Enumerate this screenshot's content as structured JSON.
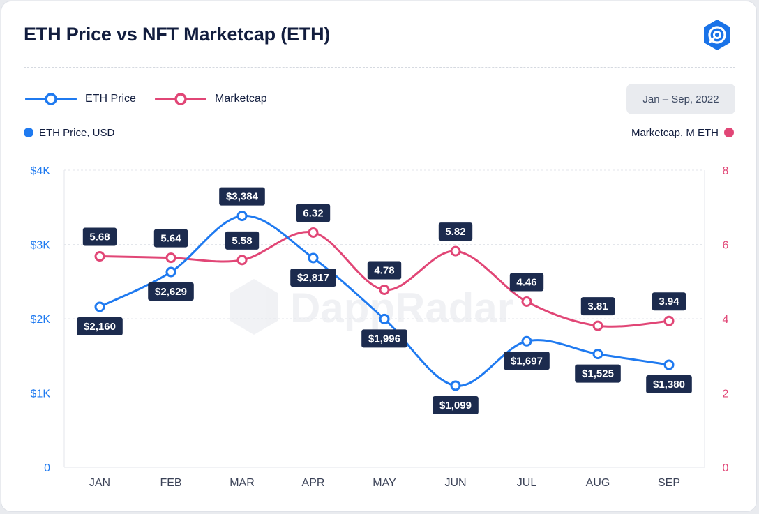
{
  "title": "ETH Price vs NFT Marketcap (ETH)",
  "logo": {
    "icon": "dappradar-logo-icon",
    "color": "#1a73e8"
  },
  "watermark": "DappRadar",
  "date_range": "Jan – Sep, 2022",
  "legend": [
    {
      "label": "ETH Price",
      "color": "#1f7af0"
    },
    {
      "label": "Marketcap",
      "color": "#e14676"
    }
  ],
  "left_axis_label": "ETH Price, USD",
  "right_axis_label": "Marketcap, M ETH",
  "chart_data": {
    "type": "line",
    "title": "ETH Price vs NFT Marketcap (ETH)",
    "categories": [
      "JAN",
      "FEB",
      "MAR",
      "APR",
      "MAY",
      "JUN",
      "JUL",
      "AUG",
      "SEP"
    ],
    "y_left": {
      "label": "ETH Price, USD",
      "ticks": [
        "0",
        "$1K",
        "$2K",
        "$3K",
        "$4K"
      ],
      "ylim": [
        0,
        4000
      ],
      "color": "#1f7af0"
    },
    "y_right": {
      "label": "Marketcap, M ETH",
      "ticks": [
        "0",
        "2",
        "4",
        "6",
        "8"
      ],
      "ylim": [
        0,
        8
      ],
      "color": "#e14676"
    },
    "grid": true,
    "series": [
      {
        "name": "ETH Price",
        "axis": "left",
        "color": "#1f7af0",
        "values": [
          2160,
          2629,
          3384,
          2817,
          1996,
          1099,
          1697,
          1525,
          1380
        ],
        "labels": [
          "$2,160",
          "$2,629",
          "$3,384",
          "$2,817",
          "$1,996",
          "$1,099",
          "$1,697",
          "$1,525",
          "$1,380"
        ],
        "label_side": [
          "below",
          "below",
          "above",
          "below",
          "below",
          "below",
          "below",
          "below",
          "below"
        ]
      },
      {
        "name": "Marketcap",
        "axis": "right",
        "color": "#e14676",
        "values": [
          5.68,
          5.64,
          5.58,
          6.32,
          4.78,
          5.82,
          4.46,
          3.81,
          3.94
        ],
        "labels": [
          "5.68",
          "5.64",
          "5.58",
          "6.32",
          "4.78",
          "5.82",
          "4.46",
          "3.81",
          "3.94"
        ],
        "label_side": [
          "above",
          "above",
          "above",
          "above",
          "above",
          "above",
          "above",
          "above",
          "above"
        ]
      }
    ]
  }
}
